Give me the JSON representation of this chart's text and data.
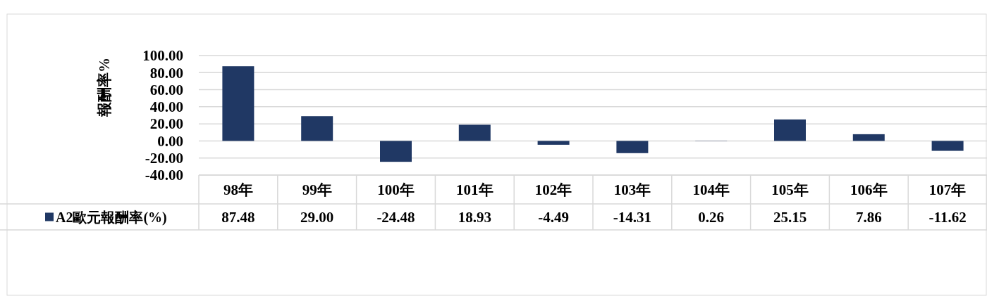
{
  "chart_data": {
    "type": "bar",
    "ylabel": "報酬率%",
    "categories": [
      "98年",
      "99年",
      "100年",
      "101年",
      "102年",
      "103年",
      "104年",
      "105年",
      "106年",
      "107年"
    ],
    "series": [
      {
        "name": "A2歐元報酬率(%)",
        "color": "#203864",
        "values": [
          87.48,
          29.0,
          -24.48,
          18.93,
          -4.49,
          -14.31,
          0.26,
          25.15,
          7.86,
          -11.62
        ],
        "value_labels": [
          "87.48",
          "29.00",
          "-24.48",
          "18.93",
          "-4.49",
          "-14.31",
          "0.26",
          "25.15",
          "7.86",
          "-11.62"
        ]
      }
    ],
    "ylim": [
      -40,
      100
    ],
    "yticks": [
      {
        "value": 100,
        "label": "100.00"
      },
      {
        "value": 80,
        "label": "80.00"
      },
      {
        "value": 60,
        "label": "60.00"
      },
      {
        "value": 40,
        "label": "40.00"
      },
      {
        "value": 20,
        "label": "20.00"
      },
      {
        "value": 0,
        "label": "0.00"
      },
      {
        "value": -20,
        "label": "-20.00"
      },
      {
        "value": -40,
        "label": "-40.00"
      }
    ],
    "grid": "y",
    "legend": "bottom left"
  }
}
